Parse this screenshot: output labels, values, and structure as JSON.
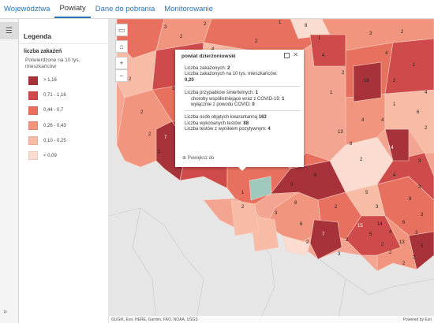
{
  "tabs": [
    {
      "label": "Województwa",
      "active": false
    },
    {
      "label": "Powiaty",
      "active": true
    },
    {
      "label": "Dane do pobrania",
      "active": false
    },
    {
      "label": "Monitorowanie",
      "active": false
    }
  ],
  "rail": {
    "toggle_icon": "☰",
    "expand_icon": "»"
  },
  "legend": {
    "header": "Legenda",
    "layer_title": "liczba zakażeń",
    "field_title": "Potwierdzone na 10 tys. mieszkańców",
    "classes": [
      {
        "label": "> 1,16",
        "color": "#a8323a"
      },
      {
        "label": "0,71 - 1,16",
        "color": "#cf4a4a"
      },
      {
        "label": "0,44 - 0,7",
        "color": "#e8705f"
      },
      {
        "label": "0,26 - 0,43",
        "color": "#f2957e"
      },
      {
        "label": "0,10 - 0,25",
        "color": "#f7bba6"
      },
      {
        "label": "< 0,09",
        "color": "#fbdcd1"
      }
    ]
  },
  "map": {
    "controls": {
      "basemap_icon": "basemap-icon",
      "home_icon": "home-icon",
      "zoom_in": "+",
      "zoom_out": "−"
    },
    "attribution": "GUGiK, Esri, HERE, Garmin, FAO, NOAA, USGS",
    "powered_by": "Powered by Esri",
    "labels": [
      "2",
      "1",
      "8",
      "3",
      "2",
      "1",
      "4",
      "1",
      "4",
      "4",
      "3",
      "2",
      "1",
      "2",
      "2",
      "7",
      "6",
      "14",
      "2",
      "18",
      "2",
      "4",
      "1",
      "7",
      "2",
      "1",
      "3",
      "2",
      "5",
      "3",
      "8",
      "3",
      "4",
      "3",
      "6",
      "3",
      "2",
      "15",
      "5",
      "14",
      "4",
      "13",
      "2",
      "2",
      "5",
      "7",
      "2",
      "6",
      "3",
      "2",
      "3",
      "8",
      "8",
      "13",
      "2",
      "3",
      "1",
      "4",
      "3",
      "2",
      "4",
      "2",
      "6",
      "4",
      "1",
      "2",
      "5",
      "2",
      "2"
    ]
  },
  "popup": {
    "title": "powiat dzierżoniowski",
    "line_cases_label": "Liczba zakażonych:",
    "line_cases_value": "2",
    "line_rate_label": "Liczba zakażonych na 10 tys. mieszkańców:",
    "line_rate_value": "0,20",
    "deaths_label": "Liczba przypadków śmiertelnych:",
    "deaths_value": "1",
    "comorb_label": "choroby współistniejące wraz z COVID-19:",
    "comorb_value": "1",
    "covid_only_label": "wyłącznie z powodu COVID:",
    "covid_only_value": "0",
    "quarantine_label": "Liczba osób objętych kwarantanną",
    "quarantine_value": "163",
    "tests_label": "Liczba wykonanych testów:",
    "tests_value": "88",
    "positive_label": "Liczba testów z wynikiem pozytywnym:",
    "positive_value": "4",
    "zoom_label": "Powiększ do"
  }
}
